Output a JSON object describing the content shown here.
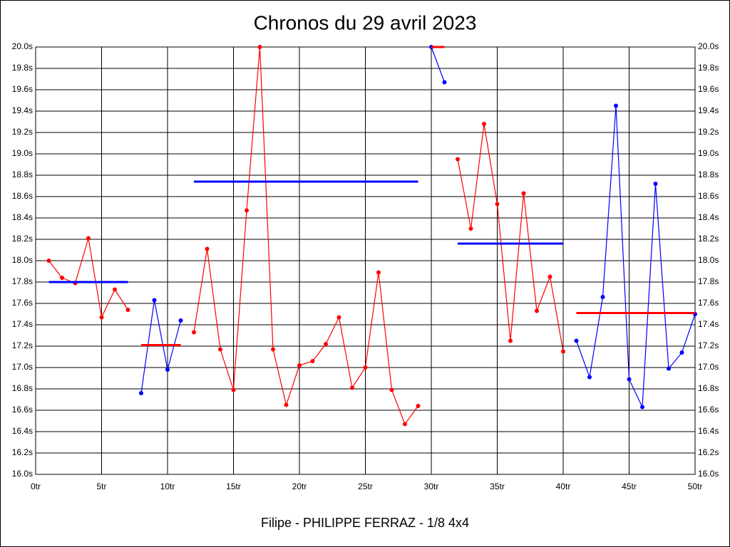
{
  "chart_data": {
    "type": "line",
    "title": "Chronos du 29 avril 2023",
    "xlabel": "Filipe - PHILIPPE FERRAZ - 1/8 4x4",
    "xlim": [
      0,
      50
    ],
    "xticks": [
      {
        "value": 0,
        "label": "0tr"
      },
      {
        "value": 5,
        "label": "5tr"
      },
      {
        "value": 10,
        "label": "10tr"
      },
      {
        "value": 15,
        "label": "15tr"
      },
      {
        "value": 20,
        "label": "20tr"
      },
      {
        "value": 25,
        "label": "25tr"
      },
      {
        "value": 30,
        "label": "30tr"
      },
      {
        "value": 35,
        "label": "35tr"
      },
      {
        "value": 40,
        "label": "40tr"
      },
      {
        "value": 45,
        "label": "45tr"
      },
      {
        "value": 50,
        "label": "50tr"
      }
    ],
    "ylim": [
      16.0,
      20.0
    ],
    "yticks": [
      {
        "value": 16.0,
        "label": "16.0s"
      },
      {
        "value": 16.2,
        "label": "16.2s"
      },
      {
        "value": 16.4,
        "label": "16.4s"
      },
      {
        "value": 16.6,
        "label": "16.6s"
      },
      {
        "value": 16.8,
        "label": "16.8s"
      },
      {
        "value": 17.0,
        "label": "17.0s"
      },
      {
        "value": 17.2,
        "label": "17.2s"
      },
      {
        "value": 17.4,
        "label": "17.4s"
      },
      {
        "value": 17.6,
        "label": "17.6s"
      },
      {
        "value": 17.8,
        "label": "17.8s"
      },
      {
        "value": 18.0,
        "label": "18.0s"
      },
      {
        "value": 18.2,
        "label": "18.2s"
      },
      {
        "value": 18.4,
        "label": "18.4s"
      },
      {
        "value": 18.6,
        "label": "18.6s"
      },
      {
        "value": 18.8,
        "label": "18.8s"
      },
      {
        "value": 19.0,
        "label": "19.0s"
      },
      {
        "value": 19.2,
        "label": "19.2s"
      },
      {
        "value": 19.4,
        "label": "19.4s"
      },
      {
        "value": 19.6,
        "label": "19.6s"
      },
      {
        "value": 19.8,
        "label": "19.8s"
      },
      {
        "value": 20.0,
        "label": "20.0s"
      }
    ],
    "grid": true,
    "series": [
      {
        "color": "#ff0000",
        "mean_color": "#0000ff",
        "x": [
          1,
          2,
          3,
          4,
          5,
          6,
          7
        ],
        "values": [
          18.0,
          17.84,
          17.79,
          18.21,
          17.47,
          17.73,
          17.54
        ],
        "mean": 17.8
      },
      {
        "color": "#0000ff",
        "mean_color": "#ff0000",
        "x": [
          8,
          9,
          10,
          11
        ],
        "values": [
          16.76,
          17.63,
          16.98,
          17.44
        ],
        "mean": 17.21
      },
      {
        "color": "#ff0000",
        "mean_color": "#0000ff",
        "x": [
          12,
          13,
          14,
          15,
          16,
          17,
          18,
          19,
          20,
          21,
          22,
          23,
          24,
          25,
          26,
          27,
          28,
          29
        ],
        "values": [
          17.33,
          18.11,
          17.17,
          16.79,
          18.47,
          20.0,
          17.17,
          16.65,
          17.02,
          17.06,
          17.22,
          17.47,
          16.81,
          17.0,
          17.89,
          16.79,
          16.47,
          16.64
        ],
        "mean": 18.74
      },
      {
        "color": "#0000ff",
        "mean_color": "#ff0000",
        "x": [
          30,
          31
        ],
        "values": [
          20.0,
          19.67
        ],
        "mean": 20.0
      },
      {
        "color": "#ff0000",
        "mean_color": "#0000ff",
        "x": [
          32,
          33,
          34,
          35,
          36,
          37,
          38,
          39,
          40
        ],
        "values": [
          18.95,
          18.3,
          19.28,
          18.53,
          17.25,
          18.63,
          17.53,
          17.85,
          17.15
        ],
        "mean": 18.16
      },
      {
        "color": "#0000ff",
        "mean_color": "#ff0000",
        "x": [
          41,
          42,
          43,
          44,
          45,
          46,
          47,
          48,
          49,
          50
        ],
        "values": [
          17.25,
          16.91,
          17.66,
          19.45,
          16.89,
          16.63,
          18.72,
          16.99,
          17.14,
          17.5
        ],
        "mean": 17.51
      }
    ]
  }
}
